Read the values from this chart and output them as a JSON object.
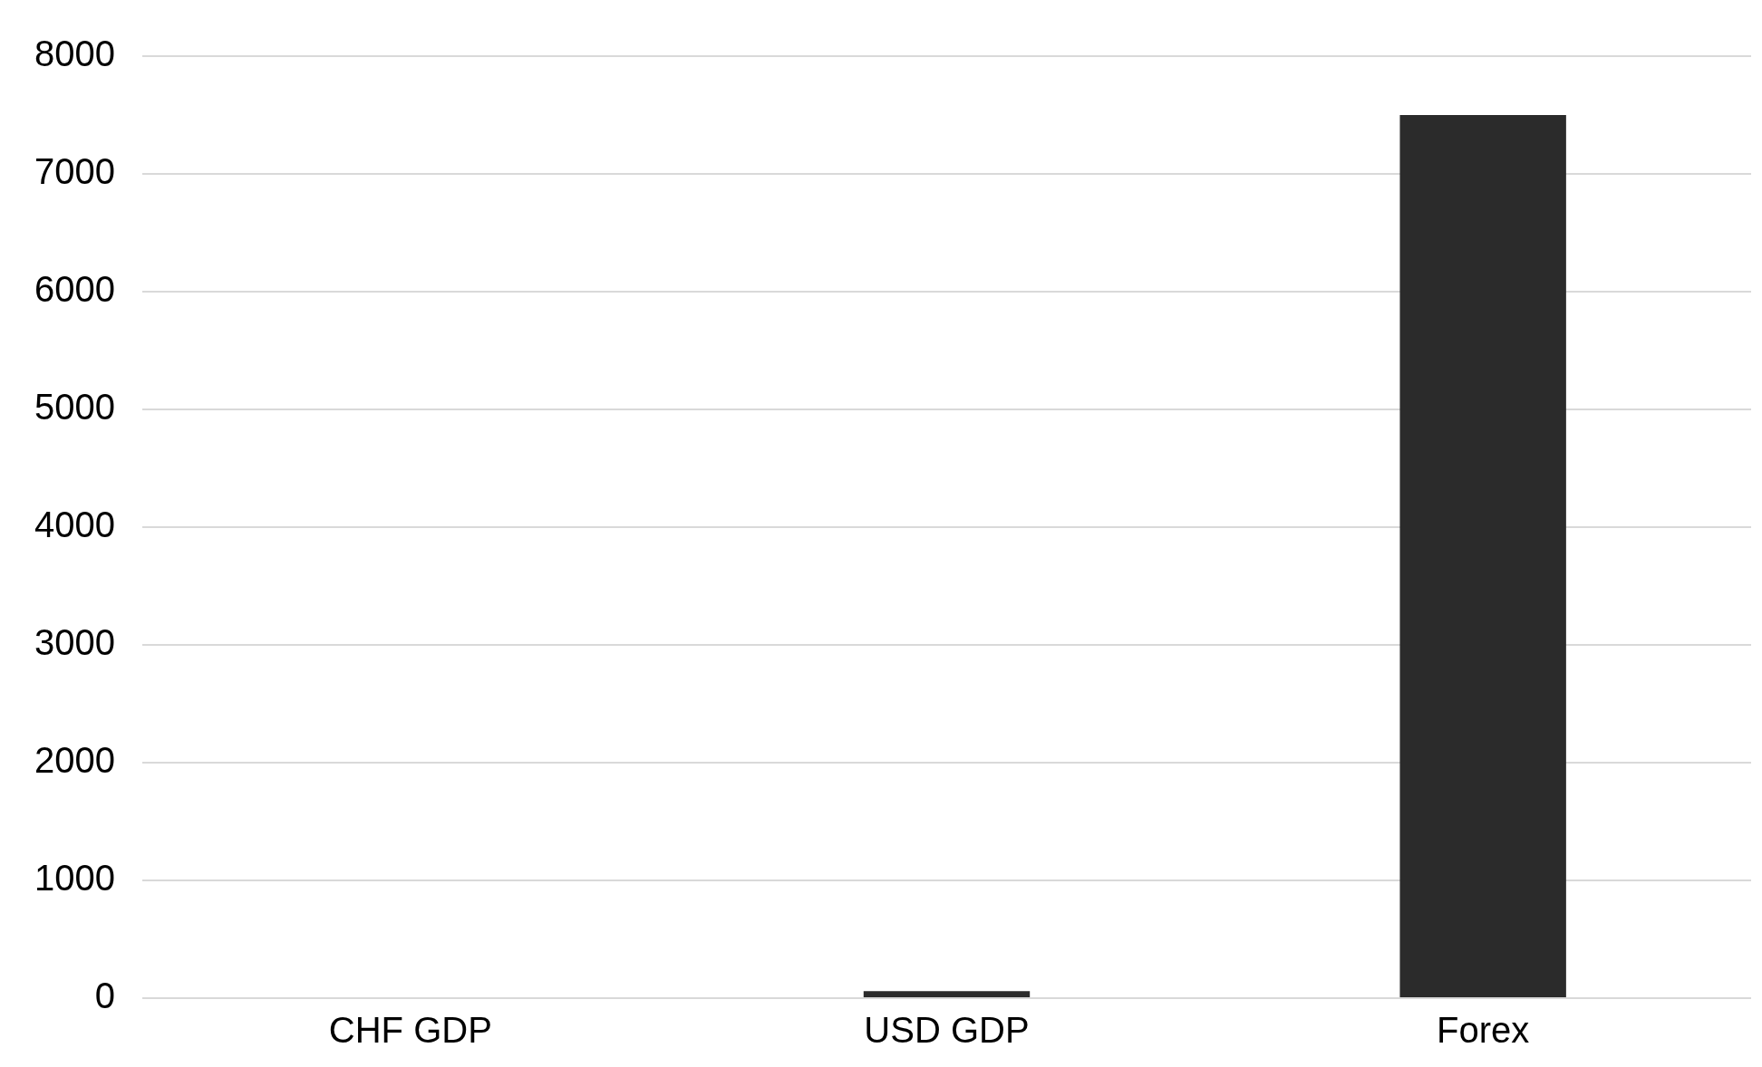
{
  "chart_data": {
    "type": "bar",
    "categories": [
      "CHF GDP",
      "USD GDP",
      "Forex"
    ],
    "values": [
      0,
      60,
      7500
    ],
    "color": "#2b2b2b",
    "ylim": [
      0,
      8000
    ],
    "yticks": [
      0,
      1000,
      2000,
      3000,
      4000,
      5000,
      6000,
      7000,
      8000
    ],
    "grid": "y",
    "legend": false
  }
}
